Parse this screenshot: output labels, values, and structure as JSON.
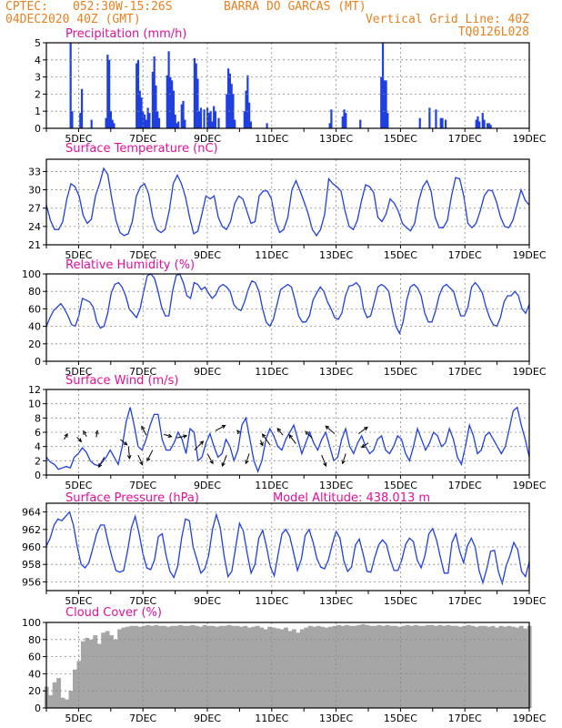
{
  "header": {
    "source": "CPTEC:",
    "location_coords": "052:30W-15:26S",
    "location_name": "BARRA DO GARCAS (MT)",
    "run_datetime": "04DEC2020 40Z (GMT)",
    "grid_note": "Vertical Grid Line: 40Z",
    "model_code": "TQ0126L028"
  },
  "colors": {
    "header_text": "#e8801e",
    "panel_title": "#e0109a",
    "series": "#1f3fe0",
    "cloud_fill": "#a6a6a6",
    "grid": "#888888"
  },
  "x_tick_labels": [
    "5DEC",
    "7DEC",
    "9DEC",
    "11DEC",
    "13DEC",
    "15DEC",
    "17DEC",
    "19DEC"
  ],
  "chart_data": [
    {
      "id": "precip",
      "type": "bar",
      "title": "Precipitation (mm/h)",
      "ylim": [
        0,
        5
      ],
      "yticks": [
        "0",
        "1",
        "2",
        "3",
        "4",
        "5"
      ],
      "bars": [
        [
          0.75,
          5.0
        ],
        [
          0.8,
          1.0
        ],
        [
          1.05,
          0.9
        ],
        [
          1.1,
          2.3
        ],
        [
          1.4,
          0.5
        ],
        [
          1.85,
          0.6
        ],
        [
          1.9,
          4.3
        ],
        [
          1.95,
          4.0
        ],
        [
          2.0,
          1.0
        ],
        [
          2.05,
          0.5
        ],
        [
          2.1,
          0.3
        ],
        [
          2.8,
          3.8
        ],
        [
          2.85,
          4.0
        ],
        [
          2.9,
          2.2
        ],
        [
          2.95,
          1.8
        ],
        [
          3.0,
          1.0
        ],
        [
          3.05,
          0.8
        ],
        [
          3.1,
          0.5
        ],
        [
          3.15,
          1.2
        ],
        [
          3.2,
          0.9
        ],
        [
          3.3,
          3.3
        ],
        [
          3.35,
          4.2
        ],
        [
          3.4,
          2.5
        ],
        [
          3.45,
          1.0
        ],
        [
          3.5,
          0.6
        ],
        [
          3.75,
          3.1
        ],
        [
          3.8,
          4.5
        ],
        [
          3.85,
          3.0
        ],
        [
          3.9,
          2.8
        ],
        [
          3.95,
          2.2
        ],
        [
          4.0,
          0.8
        ],
        [
          4.05,
          0.3
        ],
        [
          4.1,
          0.4
        ],
        [
          4.2,
          1.4
        ],
        [
          4.25,
          1.6
        ],
        [
          4.3,
          0.5
        ],
        [
          4.6,
          4.1
        ],
        [
          4.65,
          3.8
        ],
        [
          4.7,
          2.9
        ],
        [
          4.75,
          1.0
        ],
        [
          4.8,
          1.2
        ],
        [
          4.9,
          1.1
        ],
        [
          5.0,
          1.2
        ],
        [
          5.05,
          0.9
        ],
        [
          5.1,
          1.0
        ],
        [
          5.15,
          0.4
        ],
        [
          5.2,
          1.3
        ],
        [
          5.25,
          1.0
        ],
        [
          5.35,
          0.6
        ],
        [
          5.6,
          2.0
        ],
        [
          5.65,
          3.5
        ],
        [
          5.7,
          3.2
        ],
        [
          5.75,
          2.6
        ],
        [
          5.8,
          2.0
        ],
        [
          5.85,
          0.5
        ],
        [
          6.15,
          1.0
        ],
        [
          6.2,
          2.2
        ],
        [
          6.25,
          3.1
        ],
        [
          6.3,
          1.5
        ],
        [
          6.35,
          0.4
        ],
        [
          6.85,
          0.3
        ],
        [
          8.8,
          0.3
        ],
        [
          8.85,
          1.1
        ],
        [
          9.2,
          0.7
        ],
        [
          9.25,
          1.1
        ],
        [
          9.3,
          0.9
        ],
        [
          9.75,
          0.5
        ],
        [
          10.4,
          3.0
        ],
        [
          10.45,
          5.0
        ],
        [
          10.5,
          2.8
        ],
        [
          10.55,
          2.8
        ],
        [
          10.6,
          0.9
        ],
        [
          11.6,
          0.6
        ],
        [
          11.9,
          1.2
        ],
        [
          12.1,
          1.1
        ],
        [
          12.25,
          0.6
        ],
        [
          12.3,
          0.6
        ],
        [
          12.4,
          0.5
        ],
        [
          13.35,
          0.5
        ],
        [
          13.4,
          0.7
        ],
        [
          13.45,
          0.4
        ],
        [
          13.55,
          0.9
        ],
        [
          13.6,
          0.5
        ],
        [
          13.7,
          0.3
        ],
        [
          13.75,
          0.3
        ],
        [
          13.8,
          0.2
        ]
      ]
    },
    {
      "id": "temp",
      "type": "line",
      "title": "Surface Temperature (nC)",
      "ylim": [
        21,
        35
      ],
      "yticks": [
        "21",
        "24",
        "27",
        "30",
        "33"
      ],
      "y": [
        27.5,
        25,
        23.5,
        23.5,
        24.8,
        28.5,
        31,
        30.5,
        29,
        25.8,
        24.5,
        25.2,
        29,
        31,
        33.5,
        32.5,
        28.5,
        25,
        23,
        22.5,
        22.8,
        24.8,
        29,
        30.5,
        31,
        29.3,
        25.5,
        23.5,
        23,
        23.5,
        26.5,
        31,
        32.4,
        31,
        28.8,
        25.5,
        22.8,
        23.2,
        26,
        29,
        28.5,
        29,
        25.5,
        24,
        23.5,
        24.8,
        27.7,
        29,
        28.5,
        26.5,
        24.5,
        24.8,
        29,
        29.8,
        29.8,
        28.5,
        24.8,
        23,
        23.5,
        25.5,
        30,
        31.5,
        29.8,
        28,
        26,
        23.5,
        22.5,
        23.5,
        26,
        31.8,
        31,
        30.5,
        29.8,
        26.5,
        24,
        23.5,
        25,
        28.2,
        30.8,
        30.5,
        29.5,
        25.5,
        24.8,
        26,
        28.5,
        27.8,
        26.5,
        24.5,
        23.8,
        23.3,
        24.5,
        28.2,
        30.5,
        31.5,
        29.8,
        25.5,
        23.8,
        23.8,
        25,
        29,
        32,
        31.8,
        29,
        24.5,
        23.8,
        24.5,
        26.5,
        29,
        30,
        29.8,
        28,
        25.5,
        24,
        23.8,
        25,
        27.5,
        30,
        28.3,
        27.5
      ]
    },
    {
      "id": "rh",
      "type": "line",
      "title": "Relative Humidity (%)",
      "ylim": [
        0,
        100
      ],
      "yticks": [
        "0",
        "20",
        "40",
        "60",
        "80",
        "100"
      ],
      "y": [
        40,
        50,
        58,
        62,
        66,
        60,
        52,
        42,
        40,
        52,
        72,
        70,
        68,
        62,
        45,
        38,
        40,
        55,
        78,
        88,
        90,
        85,
        75,
        60,
        55,
        50,
        60,
        80,
        98,
        100,
        95,
        80,
        62,
        52,
        52,
        80,
        98,
        100,
        90,
        75,
        72,
        90,
        88,
        82,
        85,
        78,
        72,
        76,
        85,
        88,
        85,
        80,
        65,
        60,
        58,
        68,
        82,
        92,
        90,
        80,
        60,
        45,
        40,
        48,
        65,
        82,
        85,
        88,
        85,
        70,
        52,
        45,
        45,
        52,
        70,
        78,
        85,
        80,
        68,
        60,
        50,
        48,
        55,
        75,
        86,
        87,
        90,
        85,
        60,
        50,
        52,
        68,
        85,
        88,
        85,
        80,
        58,
        40,
        32,
        45,
        70,
        85,
        88,
        84,
        75,
        55,
        45,
        45,
        58,
        75,
        85,
        88,
        84,
        80,
        65,
        52,
        52,
        62,
        85,
        90,
        85,
        78,
        62,
        50,
        42,
        40,
        50,
        68,
        75,
        75,
        80,
        75,
        60,
        55,
        65
      ]
    },
    {
      "id": "wind",
      "type": "line",
      "title": "Surface Wind (m/s)",
      "ylim": [
        0,
        12
      ],
      "yticks": [
        "0",
        "2",
        "4",
        "6",
        "8",
        "10",
        "12"
      ],
      "y": [
        2.5,
        1.8,
        1.5,
        0.8,
        1.0,
        1.2,
        1.0,
        2.5,
        3.0,
        3.8,
        3.2,
        2.0,
        1.5,
        1.3,
        1.8,
        2.5,
        3.5,
        2.5,
        1.5,
        4.0,
        7.5,
        9.5,
        7.0,
        4.0,
        3.5,
        5.0,
        7.0,
        8.5,
        8.5,
        5.0,
        3.5,
        3.5,
        4.5,
        6.0,
        5.0,
        3.0,
        6.5,
        6.0,
        2.0,
        2.5,
        4.5,
        5.8,
        4.0,
        2.5,
        3.0,
        5.0,
        4.0,
        2.0,
        3.5,
        7.0,
        8.0,
        5.0,
        2.0,
        0.5,
        2.0,
        5.0,
        6.5,
        5.5,
        4.0,
        3.5,
        5.0,
        6.0,
        7.0,
        5.0,
        3.0,
        4.5,
        6.0,
        4.5,
        3.5,
        5.0,
        6.0,
        4.0,
        2.0,
        2.5,
        5.0,
        6.5,
        4.0,
        3.0,
        4.5,
        5.5,
        4.0,
        3.0,
        3.5,
        5.0,
        5.5,
        3.5,
        3.0,
        4.0,
        5.5,
        5.0,
        3.0,
        2.0,
        4.0,
        6.5,
        5.0,
        3.5,
        4.5,
        6.0,
        5.5,
        4.0,
        4.5,
        6.5,
        5.0,
        2.5,
        1.5,
        4.0,
        7.0,
        5.5,
        3.0,
        3.5,
        5.5,
        6.0,
        5.0,
        4.0,
        3.0,
        4.0,
        6.5,
        9.0,
        9.5,
        7.0,
        5.0,
        2.5
      ],
      "vectors": [
        [
          0.55,
          5.0,
          0.3,
          0.5
        ],
        [
          0.95,
          5.3,
          0.4,
          -0.4
        ],
        [
          1.25,
          5.4,
          -0.3,
          0.5
        ],
        [
          1.55,
          5.3,
          0.1,
          0.6
        ],
        [
          1.8,
          2.5,
          -0.5,
          -0.9
        ],
        [
          2.3,
          5.0,
          0.6,
          -0.5
        ],
        [
          2.55,
          4.0,
          0.1,
          -1.1
        ],
        [
          2.85,
          2.8,
          0.4,
          -0.9
        ],
        [
          3.1,
          5.6,
          -0.4,
          0.8
        ],
        [
          3.3,
          3.5,
          -0.5,
          -1.0
        ],
        [
          3.65,
          5.7,
          0.7,
          -0.2
        ],
        [
          4.05,
          5.2,
          0.9,
          0.2
        ],
        [
          4.6,
          3.5,
          0.8,
          0.8
        ],
        [
          5.0,
          3.0,
          0.5,
          -0.9
        ],
        [
          5.25,
          6.2,
          0.9,
          0.5
        ],
        [
          5.6,
          2.8,
          -0.4,
          -1.0
        ],
        [
          6.0,
          5.8,
          -0.2,
          0.3
        ],
        [
          6.3,
          3.0,
          -0.3,
          -0.9
        ],
        [
          6.65,
          4.9,
          0.2,
          -0.5
        ],
        [
          6.95,
          4.2,
          -0.7,
          1.0
        ],
        [
          7.35,
          5.6,
          -0.5,
          0.6
        ],
        [
          7.75,
          4.4,
          -0.6,
          0.8
        ],
        [
          8.25,
          5.2,
          -0.6,
          0.6
        ],
        [
          8.55,
          2.8,
          0.4,
          -1.0
        ],
        [
          8.95,
          5.8,
          -0.8,
          0.7
        ],
        [
          9.3,
          3.0,
          -0.3,
          -0.9
        ],
        [
          9.7,
          5.8,
          0.8,
          0.6
        ],
        [
          10.0,
          4.5,
          -0.6,
          -0.4
        ]
      ]
    },
    {
      "id": "pressure",
      "type": "line",
      "title": "Surface Pressure (hPa)",
      "ylim": [
        955,
        965
      ],
      "yticks": [
        "956",
        "958",
        "960",
        "962",
        "964"
      ],
      "annotation": "Model Altitude: 438.013 m",
      "y": [
        960.1,
        961,
        962.5,
        963.2,
        963,
        963.5,
        964,
        962.5,
        960,
        958,
        957.6,
        958.2,
        959.8,
        961.5,
        962.5,
        962.5,
        960.5,
        958.8,
        957.3,
        957.1,
        957.3,
        959.5,
        962.2,
        963.5,
        961.5,
        959.2,
        957.6,
        957.4,
        958.5,
        961.2,
        961.5,
        959,
        957.2,
        956.5,
        957.8,
        961,
        963.2,
        963,
        960,
        958.5,
        957,
        957.5,
        959,
        962,
        963.7,
        962.2,
        959,
        956.6,
        957.2,
        960,
        962.7,
        961.8,
        959.2,
        957,
        958,
        961,
        961.9,
        960,
        957.7,
        956.7,
        959.2,
        961.5,
        962,
        961.2,
        959.3,
        957.3,
        958.6,
        961.3,
        962,
        960.6,
        958.7,
        957.7,
        957.5,
        958.5,
        960.3,
        961.8,
        961,
        958.4,
        957.2,
        957.7,
        960.2,
        960.9,
        959.2,
        957.2,
        957.1,
        958.8,
        960.2,
        960.8,
        960.3,
        958.6,
        957.3,
        957.3,
        958.5,
        960.3,
        961,
        960.6,
        958.5,
        957.6,
        959,
        961.5,
        962.1,
        960.8,
        958.8,
        957,
        957,
        960.5,
        961.5,
        959.5,
        958.2,
        960.1,
        961,
        960,
        957.3,
        955.9,
        957.5,
        959.5,
        959.6,
        957.2,
        955.8,
        957.8,
        959,
        960.5,
        959.7,
        957.2,
        956.6,
        958.3
      ]
    },
    {
      "id": "cloud",
      "type": "area",
      "title": "Cloud Cover (%)",
      "ylim": [
        0,
        100
      ],
      "yticks": [
        "0",
        "20",
        "40",
        "60",
        "80",
        "100"
      ],
      "y": [
        25,
        15,
        30,
        35,
        12,
        10,
        20,
        45,
        55,
        78,
        82,
        80,
        85,
        75,
        88,
        90,
        85,
        80,
        92,
        94,
        95,
        96,
        96,
        95,
        96,
        97,
        96,
        97,
        96,
        96,
        95,
        96,
        96,
        97,
        96,
        96,
        97,
        96,
        95,
        97,
        96,
        96,
        95,
        96,
        96,
        97,
        96,
        96,
        95,
        96,
        94,
        95,
        96,
        94,
        92,
        95,
        94,
        93,
        92,
        94,
        90,
        92,
        88,
        92,
        94,
        96,
        95,
        96,
        95,
        94,
        95,
        96,
        97,
        96,
        97,
        96,
        96,
        97,
        98,
        97,
        96,
        96,
        97,
        96,
        97,
        96,
        96,
        95,
        96,
        97,
        96,
        97,
        96,
        96,
        97,
        97,
        96,
        97,
        96,
        97,
        96,
        96,
        95,
        96,
        97,
        96,
        95,
        96,
        96,
        95,
        96,
        94,
        96,
        95,
        96,
        95,
        94,
        96,
        93,
        96
      ]
    }
  ]
}
